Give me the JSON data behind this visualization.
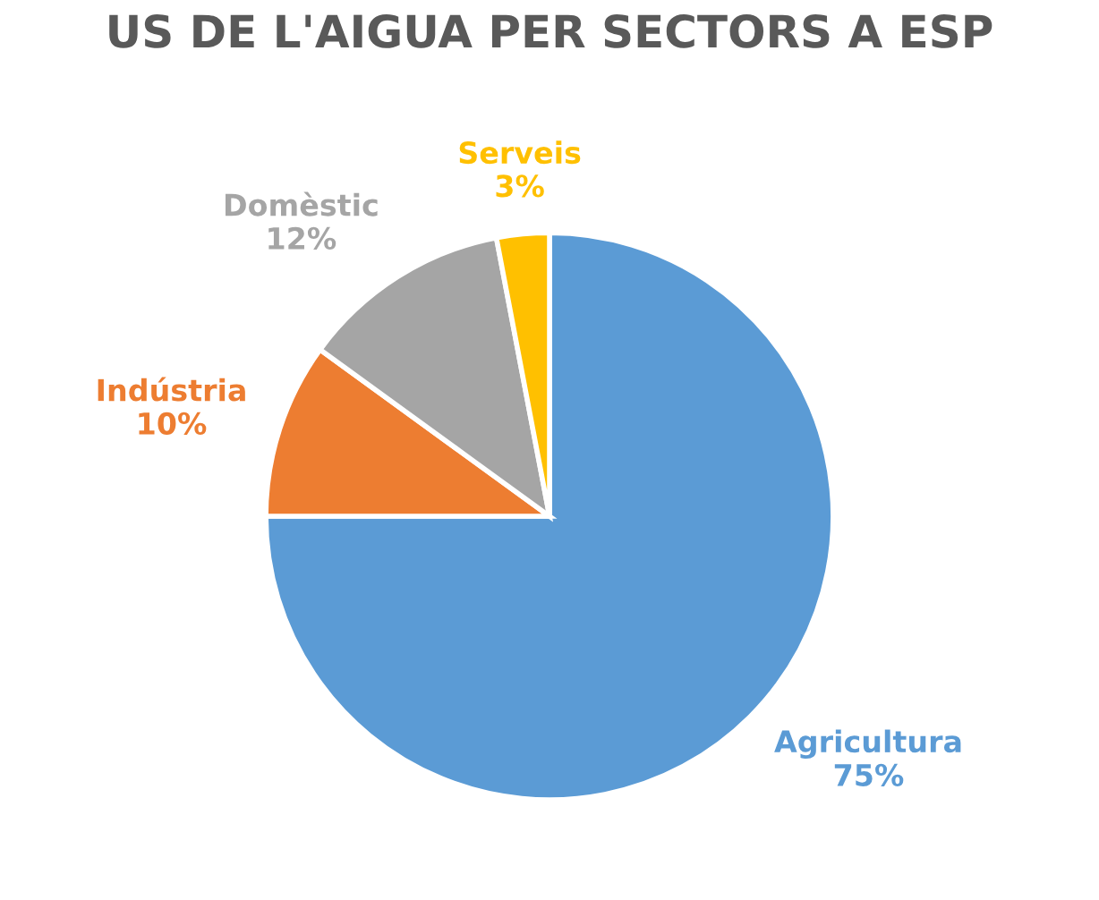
{
  "chart_data": {
    "type": "pie",
    "title": "US DE L'AIGUA PER SECTORS A ESP",
    "categories": [
      "Agricultura",
      "Indústria",
      "Domèstic",
      "Serveis"
    ],
    "values": [
      75,
      10,
      12,
      3
    ],
    "colors": [
      "#5b9bd5",
      "#ed7d31",
      "#a5a5a5",
      "#ffc000"
    ],
    "value_labels": [
      "75%",
      "10%",
      "12%",
      "3%"
    ],
    "legend": false
  }
}
